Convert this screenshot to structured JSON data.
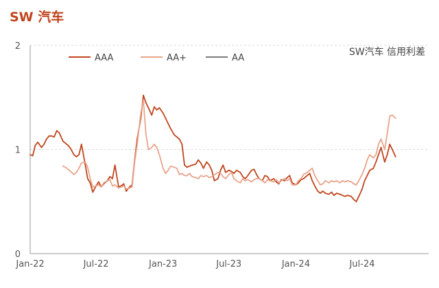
{
  "page": {
    "title": "SW 汽车",
    "title_color": "#c0451e"
  },
  "chart_data": {
    "type": "line",
    "title": "SW汽车 信用利差",
    "xlabel": "",
    "ylabel": "",
    "xlim": [
      "2022-01-01",
      "2024-12-31"
    ],
    "ylim": [
      0,
      2
    ],
    "yticks": [
      0,
      1,
      2
    ],
    "xticks": [
      {
        "label": "Jan-22",
        "date": "2022-01-01"
      },
      {
        "label": "Jul-22",
        "date": "2022-07-01"
      },
      {
        "label": "Jan-23",
        "date": "2023-01-01"
      },
      {
        "label": "Jul-23",
        "date": "2023-07-01"
      },
      {
        "label": "Jan-24",
        "date": "2024-01-01"
      },
      {
        "label": "Jul-24",
        "date": "2024-07-01"
      }
    ],
    "grid": "horizontal dashed",
    "legend_position": "top-left",
    "series": [
      {
        "name": "AAA",
        "color": "#c0451e",
        "points": [
          [
            "2022-01-01",
            0.95
          ],
          [
            "2022-01-08",
            0.94
          ],
          [
            "2022-01-15",
            1.04
          ],
          [
            "2022-01-22",
            1.07
          ],
          [
            "2022-02-01",
            1.02
          ],
          [
            "2022-02-08",
            1.05
          ],
          [
            "2022-02-15",
            1.1
          ],
          [
            "2022-02-22",
            1.13
          ],
          [
            "2022-03-01",
            1.13
          ],
          [
            "2022-03-08",
            1.12
          ],
          [
            "2022-03-15",
            1.18
          ],
          [
            "2022-03-22",
            1.16
          ],
          [
            "2022-04-01",
            1.08
          ],
          [
            "2022-04-08",
            1.06
          ],
          [
            "2022-04-15",
            1.04
          ],
          [
            "2022-04-22",
            1.01
          ],
          [
            "2022-05-01",
            0.95
          ],
          [
            "2022-05-08",
            0.93
          ],
          [
            "2022-05-15",
            0.95
          ],
          [
            "2022-05-22",
            1.05
          ],
          [
            "2022-06-01",
            0.86
          ],
          [
            "2022-06-08",
            0.72
          ],
          [
            "2022-06-15",
            0.68
          ],
          [
            "2022-06-22",
            0.59
          ],
          [
            "2022-07-01",
            0.65
          ],
          [
            "2022-07-08",
            0.69
          ],
          [
            "2022-07-15",
            0.64
          ],
          [
            "2022-07-22",
            0.67
          ],
          [
            "2022-08-01",
            0.7
          ],
          [
            "2022-08-08",
            0.74
          ],
          [
            "2022-08-15",
            0.72
          ],
          [
            "2022-08-22",
            0.85
          ],
          [
            "2022-09-01",
            0.64
          ],
          [
            "2022-09-08",
            0.65
          ],
          [
            "2022-09-15",
            0.67
          ],
          [
            "2022-09-22",
            0.6
          ],
          [
            "2022-10-01",
            0.64
          ],
          [
            "2022-10-08",
            0.66
          ],
          [
            "2022-10-15",
            0.9
          ],
          [
            "2022-10-22",
            1.1
          ],
          [
            "2022-11-01",
            1.3
          ],
          [
            "2022-11-08",
            1.52
          ],
          [
            "2022-11-15",
            1.45
          ],
          [
            "2022-11-22",
            1.4
          ],
          [
            "2022-12-01",
            1.33
          ],
          [
            "2022-12-08",
            1.41
          ],
          [
            "2022-12-15",
            1.38
          ],
          [
            "2022-12-22",
            1.4
          ],
          [
            "2023-01-01",
            1.35
          ],
          [
            "2023-01-08",
            1.3
          ],
          [
            "2023-01-15",
            1.25
          ],
          [
            "2023-01-22",
            1.2
          ],
          [
            "2023-02-01",
            1.14
          ],
          [
            "2023-02-08",
            1.12
          ],
          [
            "2023-02-15",
            1.1
          ],
          [
            "2023-02-22",
            1.05
          ],
          [
            "2023-03-01",
            0.85
          ],
          [
            "2023-03-08",
            0.83
          ],
          [
            "2023-03-15",
            0.84
          ],
          [
            "2023-03-22",
            0.85
          ],
          [
            "2023-04-01",
            0.86
          ],
          [
            "2023-04-08",
            0.9
          ],
          [
            "2023-04-15",
            0.87
          ],
          [
            "2023-04-22",
            0.82
          ],
          [
            "2023-05-01",
            0.88
          ],
          [
            "2023-05-08",
            0.85
          ],
          [
            "2023-05-15",
            0.8
          ],
          [
            "2023-05-22",
            0.7
          ],
          [
            "2023-06-01",
            0.72
          ],
          [
            "2023-06-08",
            0.8
          ],
          [
            "2023-06-15",
            0.85
          ],
          [
            "2023-06-22",
            0.78
          ],
          [
            "2023-07-01",
            0.8
          ],
          [
            "2023-07-08",
            0.79
          ],
          [
            "2023-07-15",
            0.77
          ],
          [
            "2023-07-22",
            0.8
          ],
          [
            "2023-08-01",
            0.78
          ],
          [
            "2023-08-08",
            0.74
          ],
          [
            "2023-08-15",
            0.72
          ],
          [
            "2023-08-22",
            0.75
          ],
          [
            "2023-09-01",
            0.8
          ],
          [
            "2023-09-08",
            0.81
          ],
          [
            "2023-09-15",
            0.76
          ],
          [
            "2023-09-22",
            0.72
          ],
          [
            "2023-10-01",
            0.7
          ],
          [
            "2023-10-08",
            0.75
          ],
          [
            "2023-10-15",
            0.74
          ],
          [
            "2023-10-22",
            0.7
          ],
          [
            "2023-11-01",
            0.72
          ],
          [
            "2023-11-08",
            0.69
          ],
          [
            "2023-11-15",
            0.67
          ],
          [
            "2023-11-22",
            0.71
          ],
          [
            "2023-12-01",
            0.7
          ],
          [
            "2023-12-08",
            0.73
          ],
          [
            "2023-12-15",
            0.75
          ],
          [
            "2023-12-22",
            0.68
          ],
          [
            "2024-01-01",
            0.66
          ],
          [
            "2024-01-08",
            0.68
          ],
          [
            "2024-01-15",
            0.71
          ],
          [
            "2024-01-22",
            0.72
          ],
          [
            "2024-02-01",
            0.75
          ],
          [
            "2024-02-08",
            0.77
          ],
          [
            "2024-02-15",
            0.7
          ],
          [
            "2024-02-22",
            0.65
          ],
          [
            "2024-03-01",
            0.6
          ],
          [
            "2024-03-08",
            0.58
          ],
          [
            "2024-03-15",
            0.6
          ],
          [
            "2024-03-22",
            0.58
          ],
          [
            "2024-04-01",
            0.57
          ],
          [
            "2024-04-08",
            0.59
          ],
          [
            "2024-04-15",
            0.56
          ],
          [
            "2024-04-22",
            0.58
          ],
          [
            "2024-05-01",
            0.57
          ],
          [
            "2024-05-08",
            0.56
          ],
          [
            "2024-05-15",
            0.55
          ],
          [
            "2024-05-22",
            0.56
          ],
          [
            "2024-06-01",
            0.55
          ],
          [
            "2024-06-08",
            0.52
          ],
          [
            "2024-06-15",
            0.5
          ],
          [
            "2024-06-22",
            0.55
          ],
          [
            "2024-07-01",
            0.62
          ],
          [
            "2024-07-08",
            0.7
          ],
          [
            "2024-07-15",
            0.75
          ],
          [
            "2024-07-22",
            0.8
          ],
          [
            "2024-08-01",
            0.82
          ],
          [
            "2024-08-08",
            0.88
          ],
          [
            "2024-08-15",
            0.95
          ],
          [
            "2024-08-22",
            1.02
          ],
          [
            "2024-09-01",
            0.88
          ],
          [
            "2024-09-08",
            0.95
          ],
          [
            "2024-09-15",
            1.05
          ],
          [
            "2024-09-22",
            1.0
          ],
          [
            "2024-10-01",
            0.93
          ]
        ]
      },
      {
        "name": "AA+",
        "color": "#e8a48c",
        "points": [
          [
            "2022-04-01",
            0.84
          ],
          [
            "2022-04-08",
            0.83
          ],
          [
            "2022-04-15",
            0.81
          ],
          [
            "2022-04-22",
            0.79
          ],
          [
            "2022-05-01",
            0.76
          ],
          [
            "2022-05-08",
            0.78
          ],
          [
            "2022-05-15",
            0.82
          ],
          [
            "2022-05-22",
            0.87
          ],
          [
            "2022-06-01",
            0.88
          ],
          [
            "2022-06-08",
            0.83
          ],
          [
            "2022-06-15",
            0.72
          ],
          [
            "2022-06-22",
            0.64
          ],
          [
            "2022-07-01",
            0.65
          ],
          [
            "2022-07-08",
            0.66
          ],
          [
            "2022-07-15",
            0.64
          ],
          [
            "2022-07-22",
            0.68
          ],
          [
            "2022-08-01",
            0.7
          ],
          [
            "2022-08-08",
            0.71
          ],
          [
            "2022-08-15",
            0.65
          ],
          [
            "2022-08-22",
            0.66
          ],
          [
            "2022-09-01",
            0.63
          ],
          [
            "2022-09-08",
            0.64
          ],
          [
            "2022-09-15",
            0.65
          ],
          [
            "2022-09-22",
            0.62
          ],
          [
            "2022-10-01",
            0.63
          ],
          [
            "2022-10-08",
            0.64
          ],
          [
            "2022-10-15",
            0.88
          ],
          [
            "2022-10-22",
            1.05
          ],
          [
            "2022-11-01",
            1.35
          ],
          [
            "2022-11-08",
            1.47
          ],
          [
            "2022-11-15",
            1.15
          ],
          [
            "2022-11-22",
            1.0
          ],
          [
            "2022-12-01",
            1.02
          ],
          [
            "2022-12-08",
            1.05
          ],
          [
            "2022-12-15",
            1.02
          ],
          [
            "2022-12-22",
            0.95
          ],
          [
            "2023-01-01",
            0.82
          ],
          [
            "2023-01-08",
            0.77
          ],
          [
            "2023-01-15",
            0.8
          ],
          [
            "2023-01-22",
            0.84
          ],
          [
            "2023-02-01",
            0.83
          ],
          [
            "2023-02-08",
            0.82
          ],
          [
            "2023-02-15",
            0.76
          ],
          [
            "2023-02-22",
            0.77
          ],
          [
            "2023-03-01",
            0.75
          ],
          [
            "2023-03-08",
            0.75
          ],
          [
            "2023-03-15",
            0.77
          ],
          [
            "2023-03-22",
            0.74
          ],
          [
            "2023-04-01",
            0.73
          ],
          [
            "2023-04-08",
            0.72
          ],
          [
            "2023-04-15",
            0.75
          ],
          [
            "2023-04-22",
            0.74
          ],
          [
            "2023-05-01",
            0.75
          ],
          [
            "2023-05-08",
            0.73
          ],
          [
            "2023-05-15",
            0.74
          ],
          [
            "2023-06-01",
            0.78
          ],
          [
            "2023-06-08",
            0.77
          ],
          [
            "2023-06-15",
            0.74
          ],
          [
            "2023-06-22",
            0.72
          ],
          [
            "2023-07-01",
            0.76
          ],
          [
            "2023-07-08",
            0.78
          ],
          [
            "2023-07-15",
            0.72
          ],
          [
            "2023-07-22",
            0.7
          ],
          [
            "2023-08-01",
            0.68
          ],
          [
            "2023-08-08",
            0.72
          ],
          [
            "2023-08-15",
            0.7
          ],
          [
            "2023-08-22",
            0.71
          ],
          [
            "2023-09-01",
            0.69
          ],
          [
            "2023-09-08",
            0.71
          ],
          [
            "2023-09-15",
            0.72
          ],
          [
            "2023-09-22",
            0.72
          ],
          [
            "2023-10-01",
            0.7
          ],
          [
            "2023-10-08",
            0.68
          ],
          [
            "2023-10-15",
            0.71
          ],
          [
            "2023-10-22",
            0.7
          ],
          [
            "2023-11-01",
            0.69
          ],
          [
            "2023-11-08",
            0.71
          ],
          [
            "2023-11-15",
            0.68
          ],
          [
            "2023-11-22",
            0.7
          ],
          [
            "2023-12-01",
            0.72
          ],
          [
            "2023-12-08",
            0.7
          ],
          [
            "2023-12-15",
            0.72
          ],
          [
            "2023-12-22",
            0.66
          ],
          [
            "2024-01-01",
            0.66
          ],
          [
            "2024-01-08",
            0.7
          ],
          [
            "2024-01-15",
            0.72
          ],
          [
            "2024-01-22",
            0.76
          ],
          [
            "2024-02-01",
            0.78
          ],
          [
            "2024-02-08",
            0.8
          ],
          [
            "2024-02-15",
            0.82
          ],
          [
            "2024-02-22",
            0.75
          ],
          [
            "2024-03-01",
            0.7
          ],
          [
            "2024-03-08",
            0.66
          ],
          [
            "2024-03-15",
            0.67
          ],
          [
            "2024-03-22",
            0.7
          ],
          [
            "2024-04-01",
            0.68
          ],
          [
            "2024-04-08",
            0.7
          ],
          [
            "2024-04-15",
            0.69
          ],
          [
            "2024-04-22",
            0.7
          ],
          [
            "2024-05-01",
            0.68
          ],
          [
            "2024-05-08",
            0.7
          ],
          [
            "2024-05-15",
            0.69
          ],
          [
            "2024-05-22",
            0.7
          ],
          [
            "2024-06-01",
            0.69
          ],
          [
            "2024-06-08",
            0.67
          ],
          [
            "2024-06-15",
            0.66
          ],
          [
            "2024-06-22",
            0.7
          ],
          [
            "2024-07-01",
            0.76
          ],
          [
            "2024-07-08",
            0.82
          ],
          [
            "2024-07-15",
            0.9
          ],
          [
            "2024-07-22",
            0.95
          ],
          [
            "2024-08-01",
            0.92
          ],
          [
            "2024-08-08",
            0.95
          ],
          [
            "2024-08-15",
            1.05
          ],
          [
            "2024-08-22",
            1.1
          ],
          [
            "2024-09-01",
            1.0
          ],
          [
            "2024-09-08",
            1.15
          ],
          [
            "2024-09-15",
            1.32
          ],
          [
            "2024-09-22",
            1.33
          ],
          [
            "2024-10-01",
            1.3
          ]
        ]
      },
      {
        "name": "AA",
        "color": "#7a7a7a",
        "points": []
      }
    ]
  }
}
